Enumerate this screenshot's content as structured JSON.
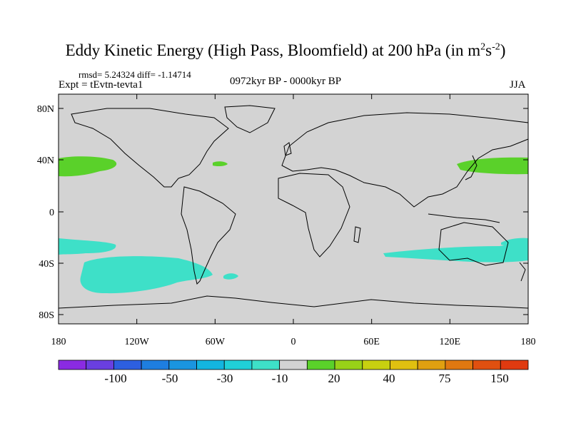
{
  "title": "Eddy Kinetic Energy (High Pass, Bloomfield) at 200 hPa (in m",
  "title_unit_sup1": "2",
  "title_unit_mid": "s",
  "title_unit_sup2": "-2",
  "title_close": ")",
  "stats": "rmsd= 5.24324 diff= -1.14714",
  "experiment": "Expt = tEvtn-tevta1",
  "period": "0972kyr BP - 0000kyr BP",
  "season": "JJA",
  "map": {
    "background_color": "#d3d3d3",
    "lat_ticks": [
      "80N",
      "40N",
      "0",
      "40S",
      "80S"
    ],
    "lon_ticks": [
      "180",
      "120W",
      "60W",
      "0",
      "60E",
      "120E",
      "180"
    ]
  },
  "colorbar": {
    "colors": [
      "#8a2be2",
      "#6a3fe0",
      "#2d5fe0",
      "#1e7ee0",
      "#1a95e0",
      "#13b5e0",
      "#20d0d8",
      "#3ee0c8",
      "#d3d3d3",
      "#5ad12a",
      "#98d118",
      "#c8d010",
      "#e0c010",
      "#e0a010",
      "#e07810",
      "#e05010",
      "#e03a10"
    ],
    "labels": [
      "-100",
      "-50",
      "-30",
      "-10",
      "20",
      "40",
      "75",
      "150"
    ]
  },
  "anomaly_colors": {
    "positive": "#5ad12a",
    "negative": "#3ee0c8"
  }
}
